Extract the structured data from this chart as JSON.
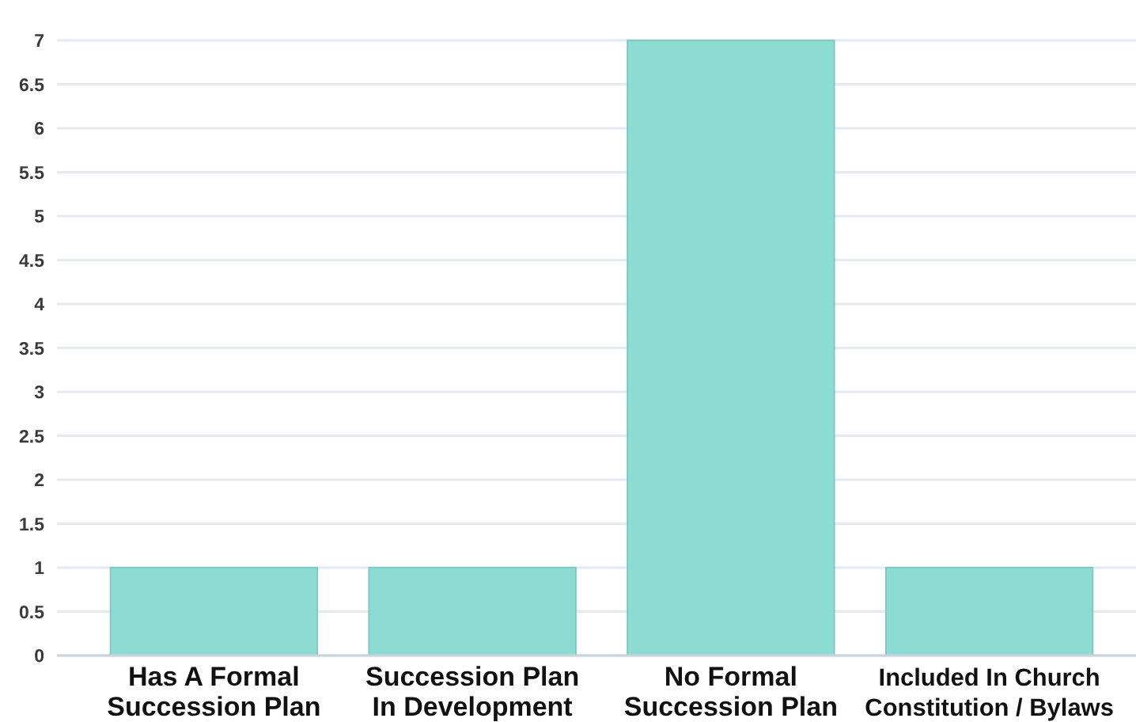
{
  "chart_data": {
    "type": "bar",
    "categories": [
      "Has A Formal Succession Plan",
      "Succession Plan In Development",
      "No Formal Succession Plan",
      "Included In Church Constitution / Bylaws"
    ],
    "values": [
      1,
      1,
      7,
      1
    ],
    "color": "#8ddcd4",
    "ylim": [
      0,
      7
    ],
    "yticks": [
      0,
      0.5,
      1,
      1.5,
      2,
      2.5,
      3,
      3.5,
      4,
      4.5,
      5,
      5.5,
      6,
      6.5,
      7
    ],
    "grid": "y"
  }
}
